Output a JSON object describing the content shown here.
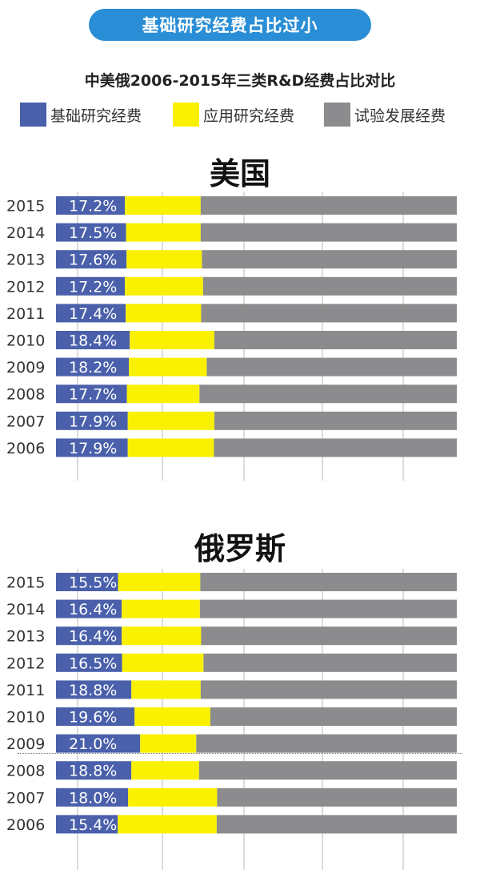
{
  "header": {
    "title": "基础研究经费占比过小",
    "subtitle": "中美俄2006-2015年三类R&D经费占比对比"
  },
  "legend": [
    {
      "label": "基础研究经费",
      "color": "#4a60ab"
    },
    {
      "label": "应用研究经费",
      "color": "#f9f100"
    },
    {
      "label": "试验发展经费",
      "color": "#8c8b8d"
    }
  ],
  "chart_data": [
    {
      "type": "bar",
      "title": "美国",
      "categories": [
        "2015",
        "2014",
        "2013",
        "2012",
        "2011",
        "2010",
        "2009",
        "2008",
        "2007",
        "2006"
      ],
      "series": [
        {
          "name": "基础研究经费",
          "values": [
            17.2,
            17.5,
            17.6,
            17.2,
            17.4,
            18.4,
            18.2,
            17.7,
            17.9,
            17.9
          ]
        },
        {
          "name": "应用研究经费",
          "values": [
            18.9,
            18.6,
            18.8,
            19.5,
            18.8,
            21.1,
            19.4,
            18.1,
            21.6,
            21.5
          ]
        },
        {
          "name": "试验发展经费",
          "values": [
            63.9,
            63.9,
            63.6,
            63.3,
            63.8,
            60.5,
            62.4,
            64.2,
            60.5,
            60.6
          ]
        }
      ],
      "value_labels": [
        "17.2%",
        "17.5%",
        "17.6%",
        "17.2%",
        "17.4%",
        "18.4%",
        "18.2%",
        "17.7%",
        "17.9%",
        "17.9%"
      ],
      "xlim": [
        0,
        100
      ],
      "grid": true
    },
    {
      "type": "bar",
      "title": "俄罗斯",
      "categories": [
        "2015",
        "2014",
        "2013",
        "2012",
        "2011",
        "2010",
        "2009",
        "2008",
        "2007",
        "2006"
      ],
      "series": [
        {
          "name": "基础研究经费",
          "values": [
            15.5,
            16.4,
            16.4,
            16.5,
            18.8,
            19.6,
            21.0,
            18.8,
            18.0,
            15.4
          ]
        },
        {
          "name": "应用研究经费",
          "values": [
            20.5,
            19.5,
            19.8,
            20.3,
            17.3,
            18.9,
            14.0,
            16.9,
            22.2,
            24.7
          ]
        },
        {
          "name": "试验发展经费",
          "values": [
            64.0,
            64.1,
            63.8,
            63.2,
            63.9,
            61.5,
            65.0,
            64.3,
            59.8,
            59.9
          ]
        }
      ],
      "value_labels": [
        "15.5%",
        "16.4%",
        "16.4%",
        "16.5%",
        "18.8%",
        "19.6%",
        "21.0%",
        "18.8%",
        "18.0%",
        "15.4%"
      ],
      "xlim": [
        0,
        100
      ],
      "grid": true
    }
  ]
}
